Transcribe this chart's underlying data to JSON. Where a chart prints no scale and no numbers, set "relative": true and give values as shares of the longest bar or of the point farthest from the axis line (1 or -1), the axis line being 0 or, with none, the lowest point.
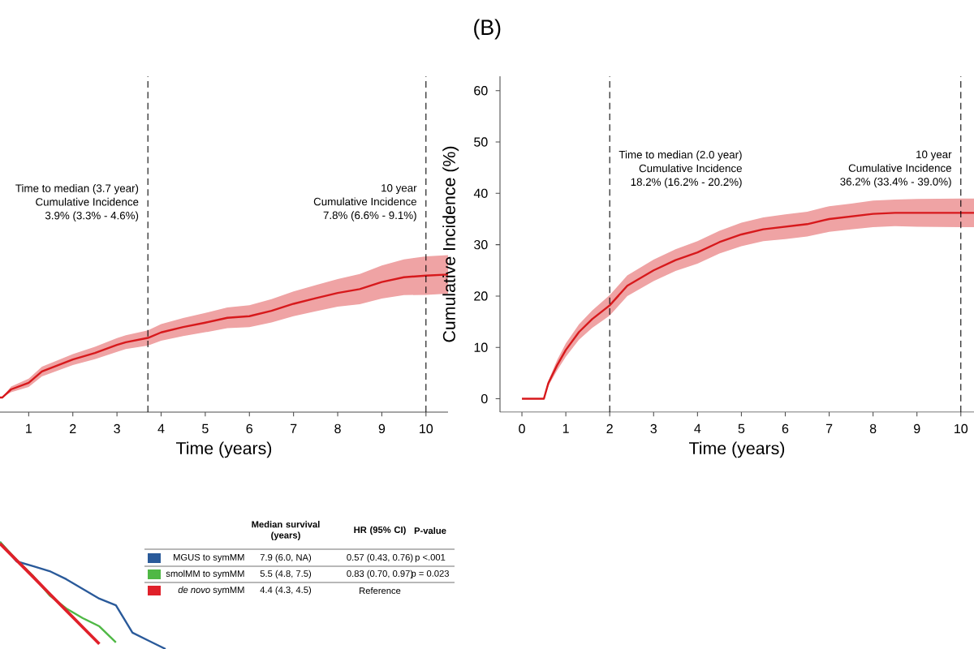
{
  "chart_data": [
    {
      "type": "line",
      "relative": true,
      "xlabel": "Time (years)",
      "xlim": [
        0.35,
        10.5
      ],
      "xticks": [
        1,
        2,
        3,
        4,
        5,
        6,
        7,
        8,
        9,
        10
      ],
      "tick_labels": "x",
      "ref_lines": [
        {
          "axis": "x",
          "value": 3.7,
          "line_style": "dashed",
          "color": "#000000"
        },
        {
          "axis": "x",
          "value": 10,
          "line_style": "dashed",
          "color": "#000000"
        }
      ],
      "annotations": [
        "Time to median (3.7 year)",
        "Cumulative Incidence",
        "3.9% (3.3% - 4.6%)",
        "10 year",
        "Cumulative Incidence",
        "7.8% (6.6% - 9.1%)"
      ],
      "series": [
        {
          "color": "#d7191c",
          "x": [
            0.35,
            0.4,
            0.6,
            1,
            1.3,
            2,
            2.5,
            3,
            3.2,
            3.7,
            4,
            4.5,
            5,
            5.5,
            6,
            6.5,
            7,
            7.5,
            8,
            8.5,
            9,
            9.5,
            10,
            10.5
          ],
          "values": [
            0.106,
            0.106,
            0.165,
            0.213,
            0.295,
            0.382,
            0.429,
            0.488,
            0.508,
            0.539,
            0.579,
            0.618,
            0.65,
            0.685,
            0.697,
            0.736,
            0.787,
            0.827,
            0.866,
            0.894,
            0.945,
            0.98,
            0.992,
            1
          ],
          "lower": [
            0.106,
            0.106,
            0.145,
            0.183,
            0.26,
            0.342,
            0.384,
            0.438,
            0.458,
            0.484,
            0.519,
            0.553,
            0.58,
            0.61,
            0.617,
            0.651,
            0.697,
            0.732,
            0.766,
            0.784,
            0.825,
            0.85,
            0.852,
            0.86
          ],
          "upper": [
            0.106,
            0.106,
            0.185,
            0.243,
            0.33,
            0.422,
            0.474,
            0.538,
            0.558,
            0.594,
            0.639,
            0.683,
            0.72,
            0.76,
            0.777,
            0.821,
            0.877,
            0.922,
            0.966,
            1.004,
            1.065,
            1.11,
            1.132,
            1.14
          ]
        }
      ]
    },
    {
      "type": "line",
      "title": "(B)",
      "xlabel": "Time (years)",
      "ylabel": "Cumulative Incidence (%)",
      "xlim": [
        -0.5,
        10.3
      ],
      "ylim": [
        -2.6,
        62.8
      ],
      "xticks": [
        0,
        1,
        2,
        3,
        4,
        5,
        6,
        7,
        8,
        9,
        10
      ],
      "yticks": [
        0,
        10,
        20,
        30,
        40,
        50,
        60
      ],
      "ref_lines": [
        {
          "axis": "x",
          "value": 2,
          "line_style": "dashed",
          "color": "#000000"
        },
        {
          "axis": "x",
          "value": 10,
          "line_style": "dashed",
          "color": "#000000"
        }
      ],
      "annotations": [
        "Time to median (2.0 year)",
        "Cumulative Incidence",
        "18.2% (16.2% - 20.2%)",
        "10 year",
        "Cumulative Incidence",
        "36.2% (33.4% - 39.0%)"
      ],
      "series": [
        {
          "color": "#d7191c",
          "x": [
            0,
            0.5,
            0.6,
            0.8,
            1,
            1.3,
            1.6,
            2,
            2.4,
            3,
            3.5,
            4,
            4.5,
            5,
            5.5,
            6,
            6.5,
            7,
            7.5,
            8,
            8.5,
            9,
            10,
            10.3
          ],
          "values": [
            0,
            0,
            3,
            6.5,
            9.5,
            13,
            15.5,
            18.2,
            22,
            25,
            27,
            28.5,
            30.5,
            32,
            33,
            33.5,
            34,
            35,
            35.5,
            36,
            36.2,
            36.2,
            36.2,
            36.2
          ],
          "lower": [
            0,
            0,
            2.5,
            5.5,
            8.2,
            11.5,
            13.8,
            16.2,
            20,
            22.9,
            24.9,
            26.3,
            28.3,
            29.7,
            30.7,
            31.1,
            31.6,
            32.5,
            33,
            33.4,
            33.6,
            33.5,
            33.4,
            33.4
          ],
          "upper": [
            0,
            0,
            3.5,
            7.5,
            10.8,
            14.5,
            17.2,
            20.2,
            24,
            27.1,
            29.1,
            30.7,
            32.7,
            34.3,
            35.3,
            35.9,
            36.4,
            37.5,
            38,
            38.6,
            38.8,
            38.9,
            39,
            39
          ]
        }
      ]
    },
    {
      "type": "line",
      "relative": true,
      "legend": "right",
      "categories": [
        null,
        null,
        null,
        null,
        null,
        null,
        null,
        null,
        null,
        null,
        null
      ],
      "annotations": [
        "Median survival (years)",
        "HR (95% CI)",
        "P-value",
        "7.9 (6.0, NA)",
        "0.57 (0.43, 0.76)",
        "p <.001",
        "5.5 (4.8, 7.5)",
        "0.83 (0.70, 0.97)",
        "p = 0.023",
        "4.4 (4.3, 4.5)",
        "Reference"
      ],
      "series": [
        {
          "name": "MGUS to symMM",
          "color": "#2a5a9a",
          "values": [
            1,
            0.818,
            0.773,
            0.727,
            0.652,
            0.561,
            0.47,
            0.409,
            0.152,
            0.076,
            0
          ]
        },
        {
          "name": "smolMM to symMM",
          "color": "#4fb845",
          "values": [
            1,
            0.833,
            0.682,
            0.5,
            0.379,
            0.288,
            0.212,
            0.061,
            null,
            null,
            null
          ]
        },
        {
          "name": "*de novo* symMM",
          "color": "#e0202a",
          "values": [
            0.985,
            0.829,
            0.673,
            0.515,
            0.359,
            0.203,
            0.047,
            null,
            null,
            null,
            null
          ]
        }
      ]
    }
  ]
}
